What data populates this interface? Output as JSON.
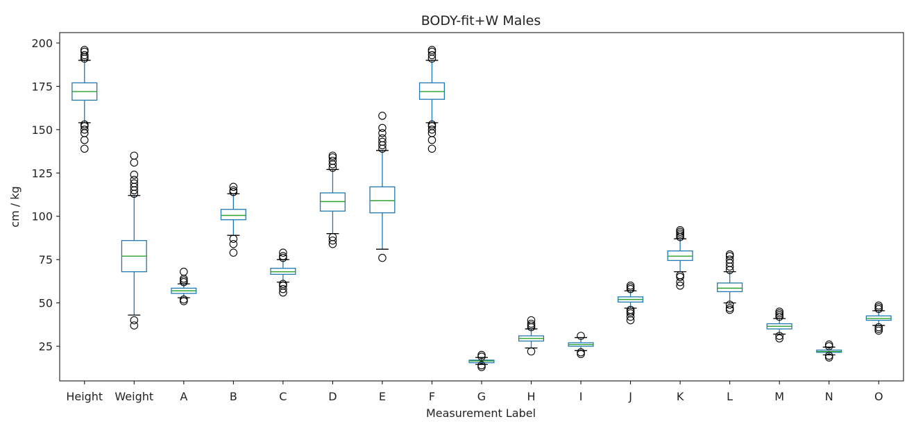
{
  "chart_data": {
    "type": "boxplot",
    "title": "BODY-fit+W Males",
    "xlabel": "Measurement Label",
    "ylabel": "cm / kg",
    "ylim": [
      5,
      206
    ],
    "yticks": [
      25,
      50,
      75,
      100,
      125,
      150,
      175,
      200
    ],
    "grid": false,
    "colors": {
      "box": "#1f77b4",
      "median": "#2ca02c",
      "flier": "#000000",
      "axis": "#000000"
    },
    "series": [
      {
        "label": "Height",
        "q1": 167,
        "median": 172,
        "q3": 177,
        "whisker_low": 154,
        "whisker_high": 190,
        "outliers": [
          139,
          144,
          148,
          150,
          152,
          153,
          191,
          192,
          193,
          195,
          196
        ]
      },
      {
        "label": "Weight",
        "q1": 68,
        "median": 77,
        "q3": 86,
        "whisker_low": 43,
        "whisker_high": 112,
        "outliers": [
          37,
          40,
          113,
          115,
          117,
          119,
          121,
          124,
          131,
          135
        ]
      },
      {
        "label": "A",
        "q1": 55.5,
        "median": 57,
        "q3": 58.5,
        "whisker_low": 53,
        "whisker_high": 61,
        "outliers": [
          51,
          52,
          62,
          63,
          64,
          68
        ]
      },
      {
        "label": "B",
        "q1": 98,
        "median": 100.5,
        "q3": 104,
        "whisker_low": 89,
        "whisker_high": 113,
        "outliers": [
          79,
          84,
          87,
          114,
          115,
          117
        ]
      },
      {
        "label": "C",
        "q1": 66.5,
        "median": 68,
        "q3": 70,
        "whisker_low": 62,
        "whisker_high": 75,
        "outliers": [
          56,
          58,
          60,
          61,
          76,
          77,
          79
        ]
      },
      {
        "label": "D",
        "q1": 103,
        "median": 108.5,
        "q3": 113.5,
        "whisker_low": 90,
        "whisker_high": 127,
        "outliers": [
          84,
          86,
          88,
          128,
          130,
          132,
          134,
          135
        ]
      },
      {
        "label": "E",
        "q1": 102,
        "median": 109,
        "q3": 117,
        "whisker_low": 81,
        "whisker_high": 138,
        "outliers": [
          76,
          139,
          141,
          143,
          145,
          148,
          151,
          158
        ]
      },
      {
        "label": "F",
        "q1": 167.5,
        "median": 172,
        "q3": 177,
        "whisker_low": 154,
        "whisker_high": 190,
        "outliers": [
          139,
          144,
          148,
          150,
          152,
          153,
          191,
          193,
          195,
          196
        ]
      },
      {
        "label": "G",
        "q1": 15.5,
        "median": 16.5,
        "q3": 17,
        "whisker_low": 14.5,
        "whisker_high": 18.5,
        "outliers": [
          13,
          14,
          19,
          20
        ]
      },
      {
        "label": "H",
        "q1": 28,
        "median": 29.5,
        "q3": 31,
        "whisker_low": 24,
        "whisker_high": 35,
        "outliers": [
          22,
          36,
          37,
          38,
          40
        ]
      },
      {
        "label": "I",
        "q1": 25,
        "median": 26,
        "q3": 27,
        "whisker_low": 22.5,
        "whisker_high": 30,
        "outliers": [
          20.5,
          21.5,
          31
        ]
      },
      {
        "label": "J",
        "q1": 50.5,
        "median": 52,
        "q3": 53.5,
        "whisker_low": 47,
        "whisker_high": 57,
        "outliers": [
          40,
          42,
          44,
          45,
          46,
          58,
          59,
          60
        ]
      },
      {
        "label": "K",
        "q1": 74.5,
        "median": 77,
        "q3": 80,
        "whisker_low": 68,
        "whisker_high": 87,
        "outliers": [
          60,
          62,
          65,
          66,
          88,
          89,
          90,
          91,
          92
        ]
      },
      {
        "label": "L",
        "q1": 56.5,
        "median": 58.5,
        "q3": 61.5,
        "whisker_low": 50,
        "whisker_high": 68,
        "outliers": [
          46,
          47,
          49,
          69,
          71,
          73,
          75,
          77,
          78
        ]
      },
      {
        "label": "M",
        "q1": 35,
        "median": 36.5,
        "q3": 38,
        "whisker_low": 32,
        "whisker_high": 41,
        "outliers": [
          29.5,
          31,
          42,
          43,
          44,
          45
        ]
      },
      {
        "label": "N",
        "q1": 21.5,
        "median": 22,
        "q3": 22.8,
        "whisker_low": 20,
        "whisker_high": 24.5,
        "outliers": [
          18.5,
          19.5,
          25,
          26
        ]
      },
      {
        "label": "O",
        "q1": 40,
        "median": 41,
        "q3": 42.5,
        "whisker_low": 37,
        "whisker_high": 45.5,
        "outliers": [
          34,
          35,
          36,
          46.5,
          47.5,
          48.5
        ]
      }
    ]
  }
}
